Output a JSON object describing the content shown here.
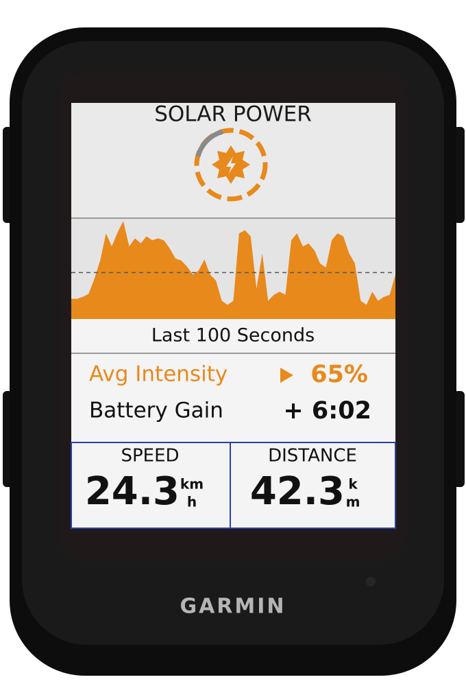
{
  "header": {
    "title": "SOLAR POWER"
  },
  "graph": {
    "values": [
      20,
      20,
      22,
      25,
      40,
      58,
      85,
      72,
      86,
      97,
      72,
      80,
      75,
      82,
      78,
      80,
      78,
      70,
      60,
      58,
      52,
      44,
      48,
      59,
      44,
      38,
      18,
      14,
      18,
      85,
      88,
      82,
      30,
      65,
      18,
      24,
      27,
      24,
      78,
      85,
      72,
      75,
      68,
      55,
      51,
      78,
      85,
      82,
      65,
      55,
      18,
      14,
      27,
      18,
      22,
      24,
      44
    ],
    "ylim": [
      0,
      100
    ],
    "avg_line": 46,
    "color": "#e8891c",
    "caption": "Last 100 Seconds"
  },
  "metrics": [
    {
      "label": "Avg Intensity",
      "value": "65%"
    },
    {
      "label": "Battery Gain",
      "value": "+ 6:02"
    }
  ],
  "fields": [
    {
      "label": "SPEED",
      "value": "24.3",
      "unit_top": "km",
      "unit_bottom": "h"
    },
    {
      "label": "DISTANCE",
      "value": "42.3",
      "unit_top": "k",
      "unit_bottom": "m"
    }
  ],
  "brand": "GARMIN"
}
